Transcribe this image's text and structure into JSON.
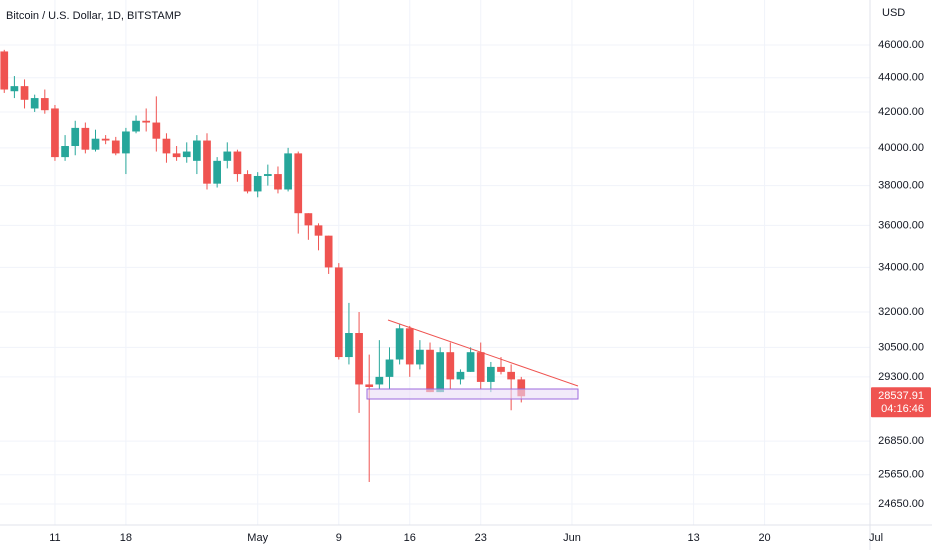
{
  "chart_data": {
    "type": "candlestick",
    "title": "Bitcoin / U.S. Dollar, 1D, BITSTAMP",
    "currency": "USD",
    "countdown": "04:16:46",
    "log_scale": true,
    "grid": true,
    "up_color": "#26a69a",
    "down_color": "#ef5350",
    "open": [
      45600,
      43200,
      43500,
      42200,
      42800,
      42200,
      39500,
      40100,
      41100,
      39900,
      40500,
      40400,
      39700,
      40900,
      41500,
      41400,
      40500,
      39700,
      39500,
      39300,
      40400,
      38100,
      39300,
      39800,
      38600,
      37700,
      38500,
      38600,
      37800,
      39700,
      36600,
      36000,
      35500,
      34000,
      30100,
      31100,
      29000,
      29000,
      29300,
      30000,
      31300,
      29800,
      30400,
      28700,
      30300,
      29200,
      29500,
      30300,
      29100,
      29700,
      29500,
      29200
    ],
    "high": [
      45700,
      44100,
      43900,
      43000,
      43300,
      42400,
      40700,
      41500,
      41400,
      41000,
      40700,
      40600,
      41100,
      41800,
      42200,
      42900,
      40800,
      40100,
      40300,
      40700,
      40800,
      39500,
      40300,
      39900,
      38800,
      38700,
      39100,
      39000,
      40000,
      39800,
      36600,
      36100,
      35500,
      34200,
      32400,
      32000,
      30200,
      30800,
      30500,
      31500,
      31400,
      30800,
      30700,
      30500,
      30700,
      29600,
      30500,
      30700,
      29900,
      30100,
      29800,
      29300
    ],
    "low": [
      43100,
      42800,
      42200,
      42000,
      41900,
      39300,
      39300,
      39600,
      39700,
      39800,
      40200,
      39600,
      38600,
      40800,
      40900,
      39800,
      39200,
      39300,
      39200,
      38600,
      37800,
      37900,
      38900,
      38200,
      37600,
      37400,
      38000,
      37600,
      37700,
      35600,
      35300,
      34800,
      33700,
      30000,
      29800,
      27900,
      25400,
      28800,
      28800,
      29800,
      29300,
      29600,
      28700,
      28700,
      28800,
      29000,
      29500,
      28800,
      28700,
      29400,
      28000,
      28300
    ],
    "close": [
      43300,
      43500,
      42700,
      42800,
      42100,
      39500,
      40100,
      41100,
      39900,
      40500,
      40400,
      39700,
      40900,
      41500,
      41400,
      40500,
      39700,
      39500,
      39800,
      40400,
      38100,
      39300,
      39800,
      38600,
      37700,
      38500,
      38600,
      37800,
      39700,
      36600,
      36000,
      35500,
      34000,
      30100,
      31100,
      29000,
      28900,
      29300,
      30000,
      31300,
      29800,
      30400,
      28700,
      30300,
      29200,
      29500,
      30300,
      29100,
      29700,
      29500,
      29200,
      28537.91
    ],
    "xlim": [
      -0.42,
      85.4
    ],
    "xticks": [
      {
        "value": 5,
        "label": "11"
      },
      {
        "value": 12,
        "label": "18"
      },
      {
        "value": 25,
        "label": "May"
      },
      {
        "value": 33,
        "label": "9"
      },
      {
        "value": 40,
        "label": "16"
      },
      {
        "value": 47,
        "label": "23"
      },
      {
        "value": 56,
        "label": "Jun"
      },
      {
        "value": 68,
        "label": "13"
      },
      {
        "value": 75,
        "label": "20"
      },
      {
        "value": 86,
        "label": "Jul"
      }
    ],
    "ylim": [
      23957,
      48903
    ],
    "yticks": [
      {
        "value": 46000,
        "label": "46000.00"
      },
      {
        "value": 44000,
        "label": "44000.00"
      },
      {
        "value": 42000,
        "label": "42000.00"
      },
      {
        "value": 40000,
        "label": "40000.00"
      },
      {
        "value": 38000,
        "label": "38000.00"
      },
      {
        "value": 36000,
        "label": "36000.00"
      },
      {
        "value": 34000,
        "label": "34000.00"
      },
      {
        "value": 32000,
        "label": "32000.00"
      },
      {
        "value": 30500,
        "label": "30500.00"
      },
      {
        "value": 29300,
        "label": "29300.00"
      },
      {
        "value": 26850,
        "label": "26850.00"
      },
      {
        "value": 25650,
        "label": "25650.00"
      },
      {
        "value": 24650,
        "label": "24650.00"
      }
    ]
  }
}
